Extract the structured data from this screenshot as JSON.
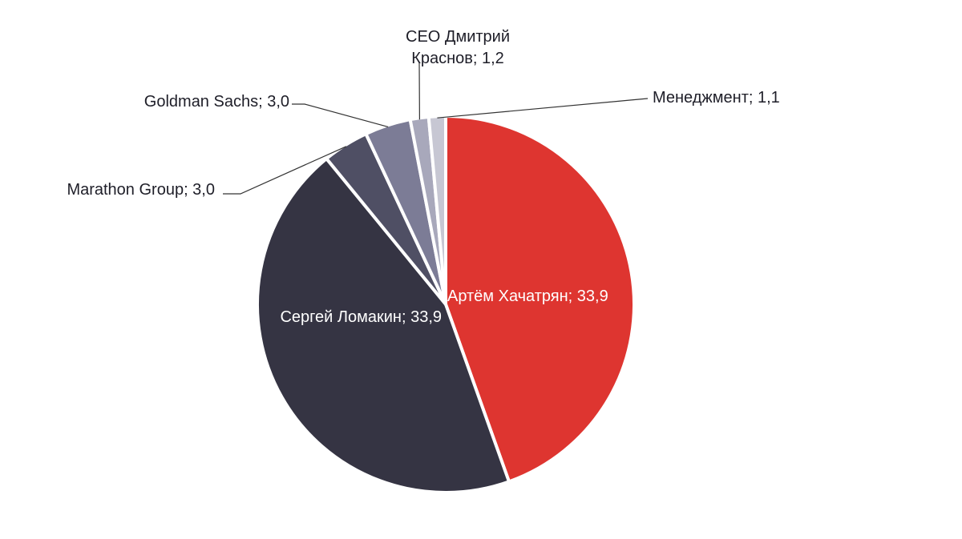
{
  "chart_data": {
    "type": "pie",
    "title": "",
    "slices": [
      {
        "name": "Артём Хачатрян",
        "value": 33.9,
        "color": "#de3530",
        "label": "Артём Хачатрян;  33,9"
      },
      {
        "name": "Сергей Ломакин",
        "value": 33.9,
        "color": "#353443",
        "label": "Сергей Ломакин;  33,9"
      },
      {
        "name": "Marathon Group",
        "value": 3.0,
        "color": "#4f4f64",
        "label": "Marathon Group;  3,0"
      },
      {
        "name": "Goldman Sachs",
        "value": 3.0,
        "color": "#7c7c96",
        "label": "Goldman Sachs;  3,0"
      },
      {
        "name": "CEO Дмитрий Краснов",
        "value": 1.2,
        "color": "#a8a8bb",
        "label_lines": [
          "CEO Дмитрий",
          "Краснов;  1,2"
        ]
      },
      {
        "name": "Менеджмент",
        "value": 1.1,
        "color": "#c7c7d3",
        "label": "Менеджмент;  1,1"
      }
    ]
  }
}
